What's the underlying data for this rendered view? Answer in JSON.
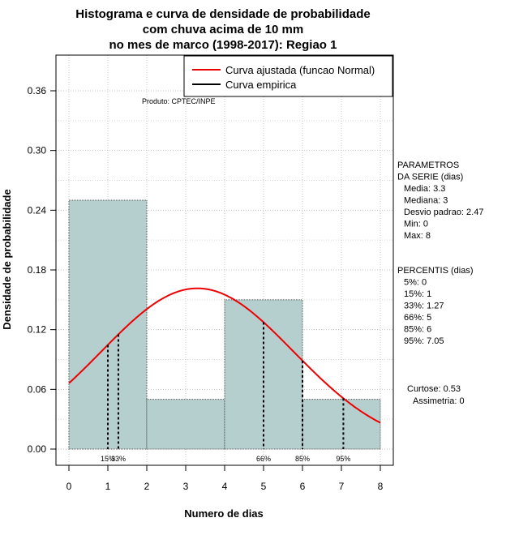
{
  "chart_data": {
    "type": "bar",
    "title_lines": [
      "Histograma e curva de densidade de probabilidade",
      "com chuva acima de 10 mm",
      "no mes de marco (1998-2017): Regiao 1"
    ],
    "xlabel": "Numero de dias",
    "ylabel": "Densidade de probabilidade",
    "xlim": [
      0,
      8
    ],
    "ylim": [
      0,
      0.36
    ],
    "x_ticks": [
      "0",
      "1",
      "2",
      "3",
      "4",
      "5",
      "6",
      "7",
      "8"
    ],
    "y_ticks": [
      "0.00",
      "0.06",
      "0.12",
      "0.18",
      "0.24",
      "0.30",
      "0.36"
    ],
    "grid": true,
    "bins": [
      {
        "x0": 0,
        "x1": 2,
        "density": 0.25
      },
      {
        "x0": 2,
        "x1": 4,
        "density": 0.05
      },
      {
        "x0": 4,
        "x1": 6,
        "density": 0.15
      },
      {
        "x0": 6,
        "x1": 8,
        "density": 0.05
      }
    ],
    "normal_curve": {
      "mean": 3.3,
      "sd": 2.47,
      "from": 0,
      "to": 8,
      "color": "#ee0000"
    },
    "percentile_markers": [
      {
        "label": "15%",
        "x": 1
      },
      {
        "label": "33%",
        "x": 1.27
      },
      {
        "label": "66%",
        "x": 5
      },
      {
        "label": "85%",
        "x": 6
      },
      {
        "label": "95%",
        "x": 7.05
      }
    ],
    "legend": {
      "position": "top-right",
      "entries": [
        {
          "label": "Curva ajustada (funcao Normal)",
          "color": "#ee0000"
        },
        {
          "label": "Curva empirica",
          "color": "#000000"
        }
      ]
    },
    "producer": "Produto: CPTEC/INPE",
    "bar_color": "#b5cece",
    "parametros": [
      "PARAMETROS",
      "DA SERIE (dias)",
      "Media: 3.3",
      "Mediana: 3",
      "Desvio padrao: 2.47",
      "Min: 0",
      "Max: 8"
    ],
    "percentis": [
      "PERCENTIS (dias)",
      "5%: 0",
      "15%: 1",
      "33%: 1.27",
      "66%: 5",
      "85%: 6",
      "95%: 7.05"
    ],
    "shape_stats": [
      "Curtose: 0.53",
      "Assimetria: 0"
    ]
  }
}
